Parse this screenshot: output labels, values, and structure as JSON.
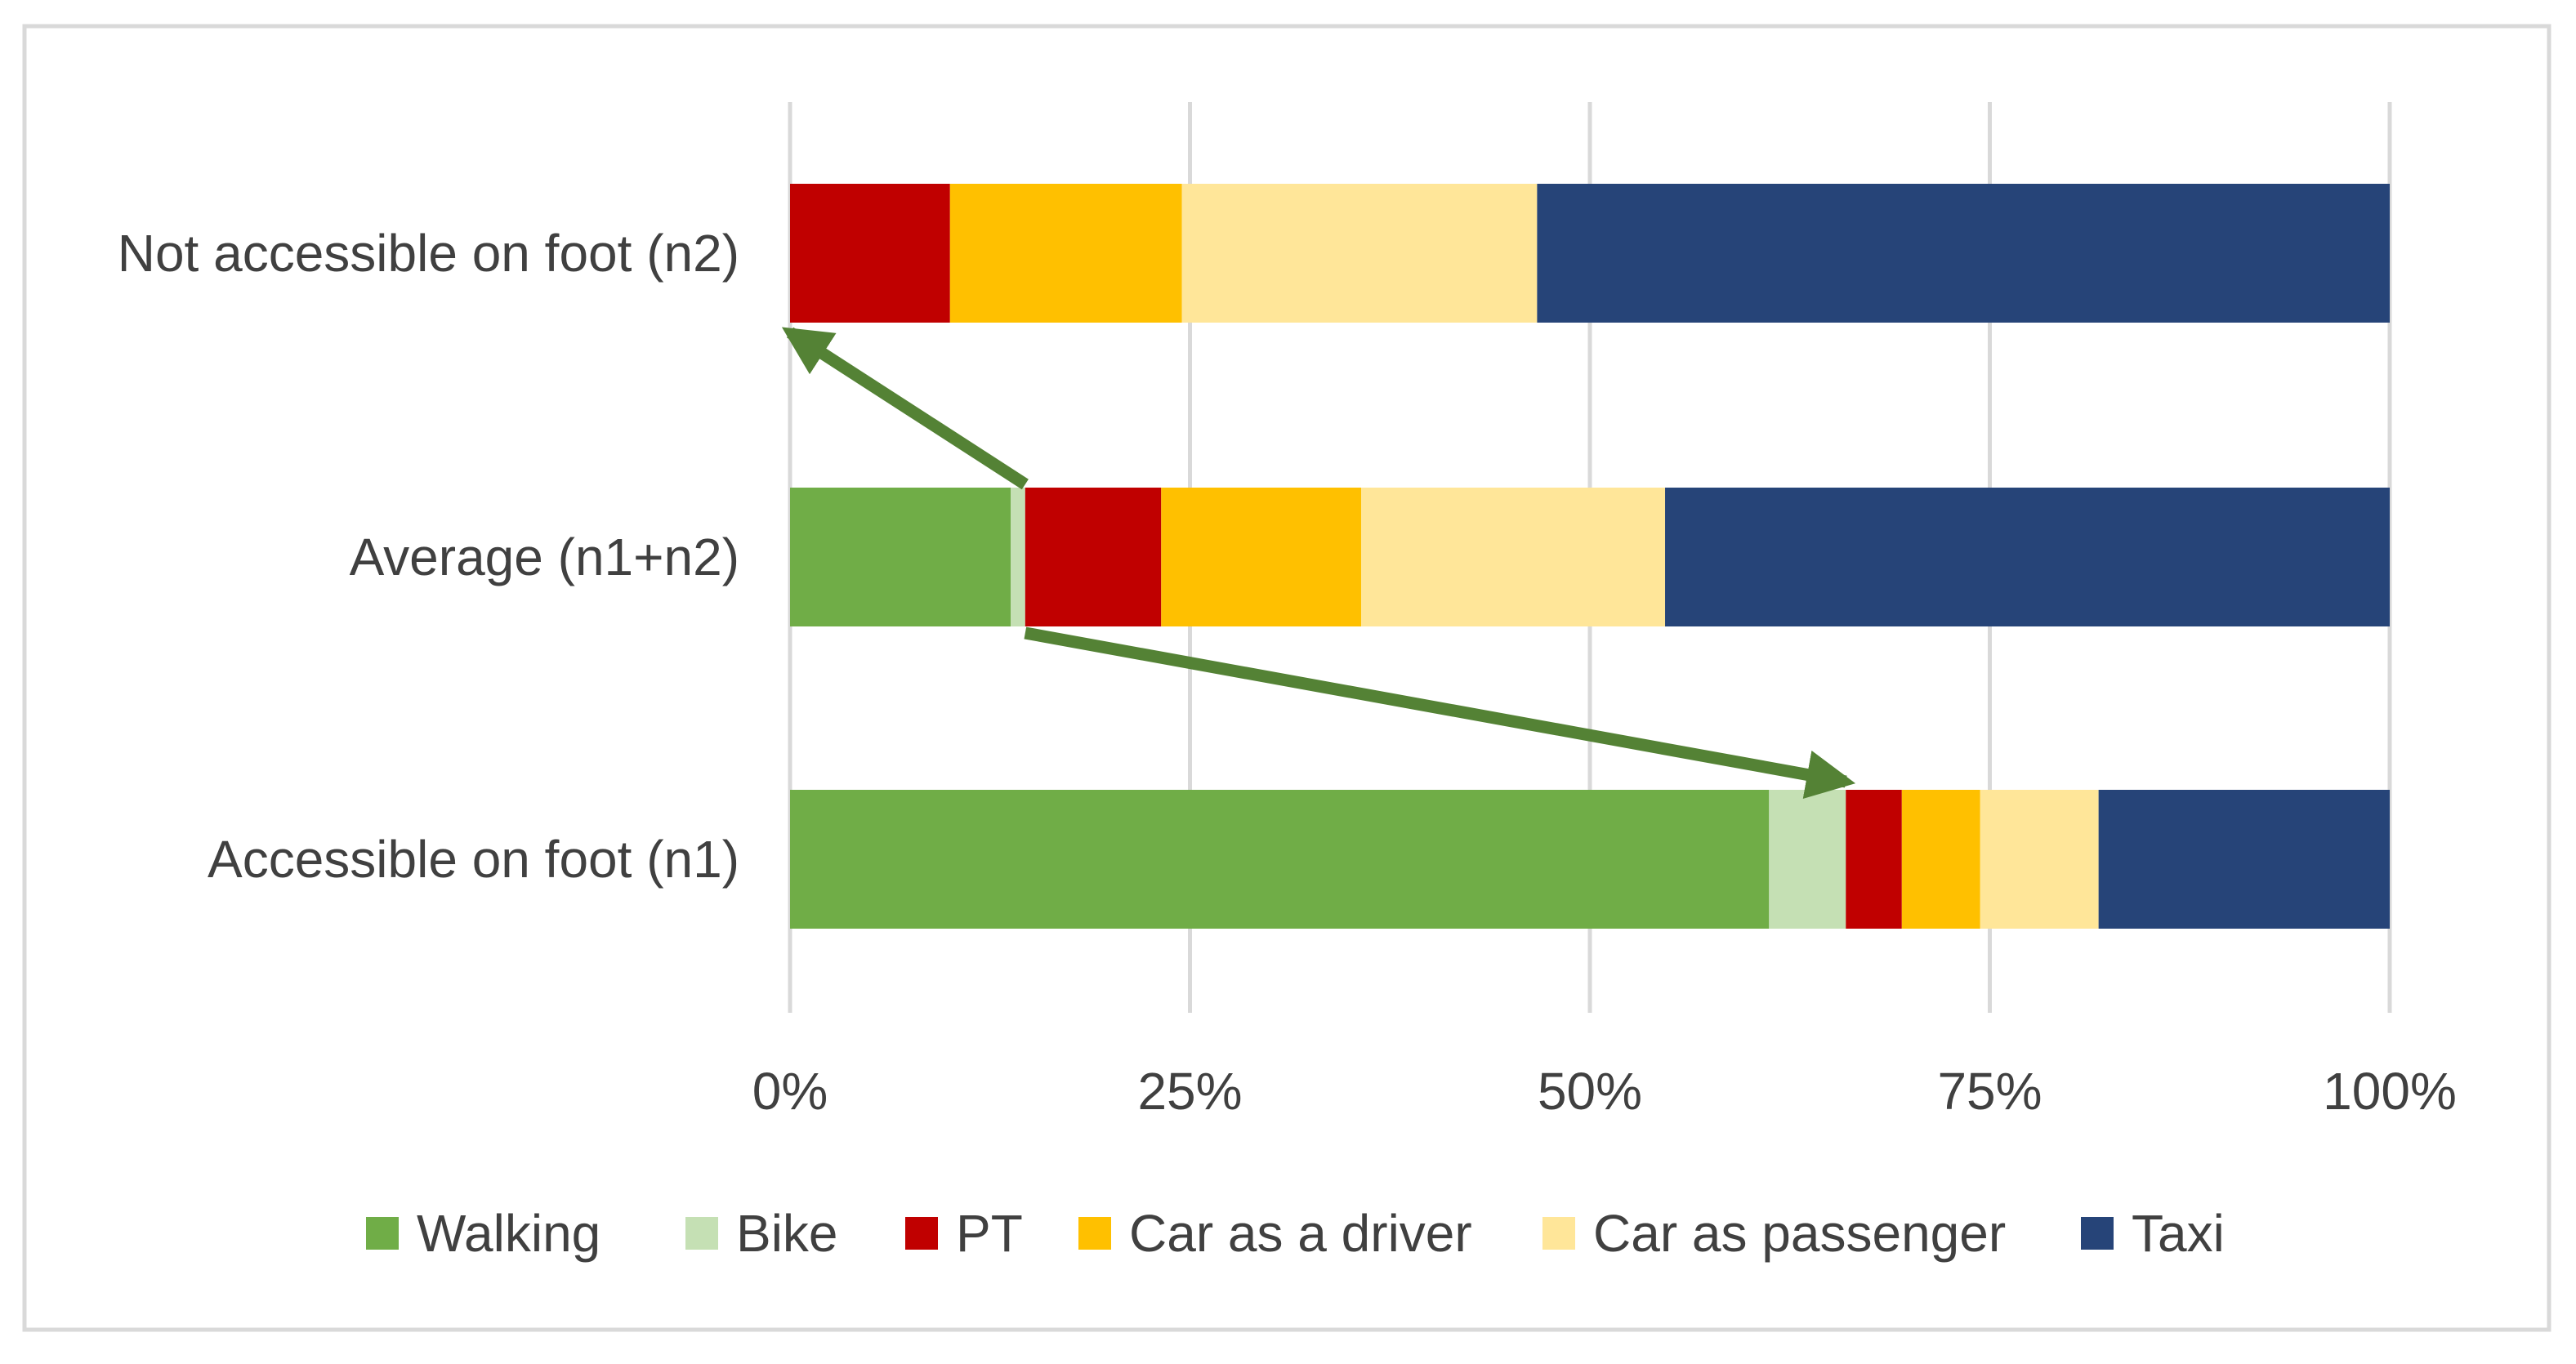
{
  "chart_data": {
    "type": "bar",
    "orientation": "horizontal",
    "stacked": "percent",
    "title": "",
    "xlabel": "",
    "ylabel": "",
    "xlim": [
      0,
      100
    ],
    "grid": true,
    "legend_position": "bottom",
    "categories": [
      "Not accessible on foot (n2)",
      "Average (n1+n2)",
      "Accessible on foot (n1)"
    ],
    "tick_values": [
      0,
      25,
      50,
      75,
      100
    ],
    "tick_labels": [
      "0%",
      "25%",
      "50%",
      "75%",
      "100%"
    ],
    "series": [
      {
        "name": "Walking",
        "color": "#70AD47",
        "values": [
          0,
          13.8,
          61.2
        ]
      },
      {
        "name": "Bike",
        "color": "#C5E0B4",
        "values": [
          0,
          0.9,
          4.8
        ]
      },
      {
        "name": "PT",
        "color": "#C00000",
        "values": [
          10,
          8.5,
          3.5
        ]
      },
      {
        "name": "Car as a driver",
        "color": "#FFC000",
        "values": [
          14.5,
          12.5,
          4.9
        ]
      },
      {
        "name": "Car as passenger",
        "color": "#FFE699",
        "values": [
          22.2,
          19,
          7.4
        ]
      },
      {
        "name": "Taxi",
        "color": "#264478",
        "values": [
          53.3,
          45.3,
          18.2
        ]
      }
    ],
    "annotations": [
      {
        "type": "arrow",
        "color": "#548235",
        "from_category": "Average (n1+n2)",
        "from_value": 14.7,
        "to_category": "Not accessible on foot (n2)",
        "to_value": 0
      },
      {
        "type": "arrow",
        "color": "#548235",
        "from_category": "Average (n1+n2)",
        "from_value": 14.7,
        "to_category": "Accessible on foot (n1)",
        "to_value": 66
      }
    ]
  }
}
